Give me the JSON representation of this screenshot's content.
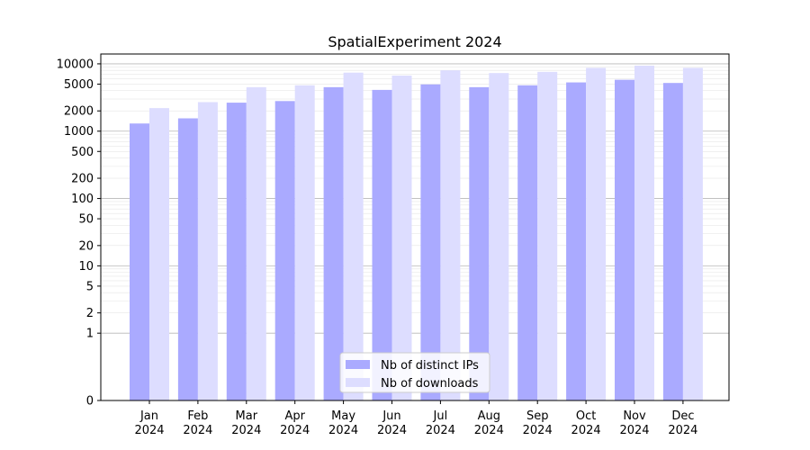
{
  "chart_data": {
    "type": "bar",
    "title": "SpatialExperiment 2024",
    "xlabel": "",
    "ylabel": "",
    "y_scale": "symlog",
    "categories": [
      {
        "month": "Jan",
        "year": "2024"
      },
      {
        "month": "Feb",
        "year": "2024"
      },
      {
        "month": "Mar",
        "year": "2024"
      },
      {
        "month": "Apr",
        "year": "2024"
      },
      {
        "month": "May",
        "year": "2024"
      },
      {
        "month": "Jun",
        "year": "2024"
      },
      {
        "month": "Jul",
        "year": "2024"
      },
      {
        "month": "Aug",
        "year": "2024"
      },
      {
        "month": "Sep",
        "year": "2024"
      },
      {
        "month": "Oct",
        "year": "2024"
      },
      {
        "month": "Nov",
        "year": "2024"
      },
      {
        "month": "Dec",
        "year": "2024"
      }
    ],
    "series": [
      {
        "name": "Nb of distinct IPs",
        "color": "#aaaaff",
        "values": [
          1300,
          1550,
          2650,
          2800,
          4500,
          4100,
          4950,
          4500,
          4800,
          5300,
          5800,
          5200
        ]
      },
      {
        "name": "Nb of downloads",
        "color": "#ddddff",
        "values": [
          2200,
          2700,
          4500,
          4800,
          7400,
          6700,
          8000,
          7300,
          7600,
          8700,
          9400,
          8700
        ]
      }
    ],
    "yticks": [
      0,
      1,
      2,
      5,
      10,
      20,
      50,
      100,
      200,
      500,
      1000,
      2000,
      5000,
      10000
    ],
    "ylim": [
      0,
      14000
    ],
    "grid": true,
    "legend": "bottom-center"
  }
}
